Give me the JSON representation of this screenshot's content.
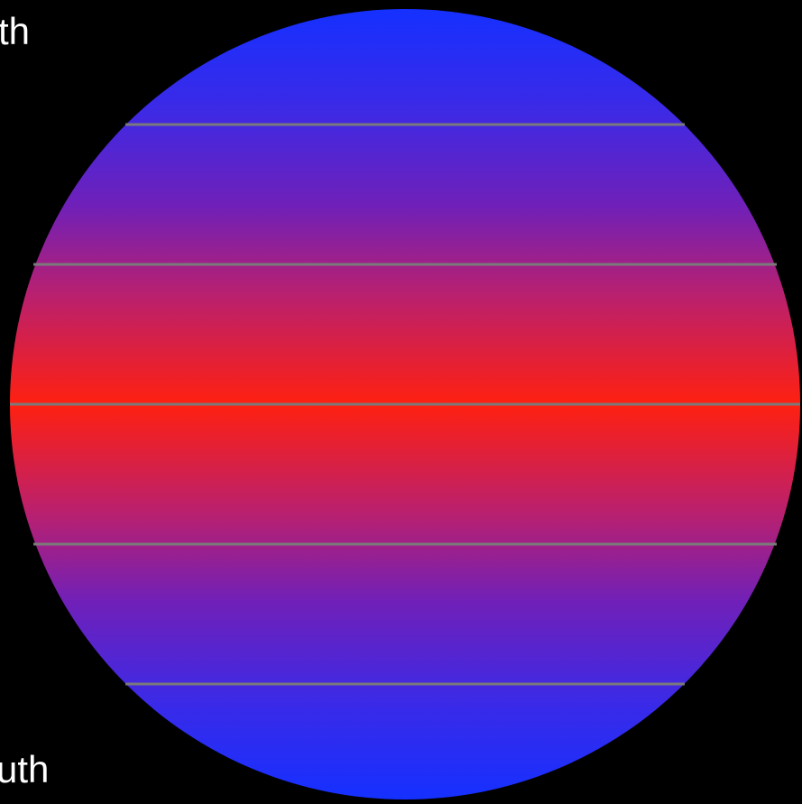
{
  "labels": {
    "north": "th",
    "south": "uth"
  }
}
